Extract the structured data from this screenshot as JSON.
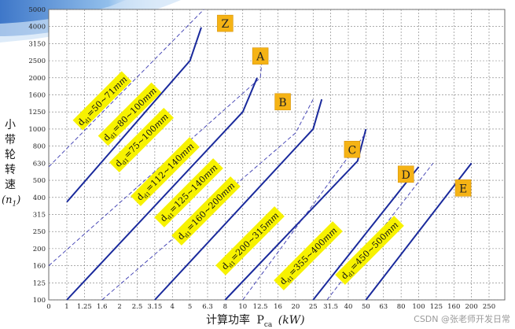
{
  "chart_data": {
    "type": "line",
    "xlabel_cn": "计算功率",
    "xlabel_sym": "P",
    "xlabel_sub": "ca",
    "xlabel_unit": "(kW)",
    "ylabel_chars": [
      "小",
      "带",
      "轮",
      "转",
      "速"
    ],
    "ylabel_sym": "(n",
    "ylabel_sub": "1",
    "ylabel_close": ")",
    "x_ticks": [
      "0",
      "1",
      "1.25",
      "1.6",
      "2",
      "2.5",
      "3.15",
      "4",
      "5",
      "6.3",
      "8",
      "10",
      "12.5",
      "16",
      "20",
      "25",
      "31.5",
      "40",
      "50",
      "63",
      "80",
      "100",
      "125",
      "160",
      "200",
      "250"
    ],
    "y_ticks": [
      "100",
      "125",
      "160",
      "200",
      "250",
      "315",
      "400",
      "500",
      "630",
      "800",
      "1000",
      "1250",
      "1600",
      "2000",
      "2500",
      "3150",
      "4000",
      "5000"
    ],
    "types": [
      {
        "name": "Z",
        "main_line": [
          [
            1,
            375
          ],
          [
            5,
            2500
          ],
          [
            5.8,
            3950
          ]
        ],
        "boundary": [
          [
            0,
            600
          ],
          [
            6,
            5000
          ]
        ]
      },
      {
        "name": "A",
        "main_line": [
          [
            1,
            100
          ],
          [
            10,
            1250
          ],
          [
            12,
            2000
          ]
        ],
        "boundary": [
          [
            0,
            160
          ],
          [
            12.5,
            2000
          ],
          [
            13,
            3000
          ]
        ]
      },
      {
        "name": "B",
        "main_line": [
          [
            3.15,
            100
          ],
          [
            25,
            1000
          ],
          [
            28,
            1500
          ]
        ],
        "boundary": [
          [
            1.6,
            100
          ],
          [
            20,
            950
          ],
          [
            25,
            1500
          ]
        ]
      },
      {
        "name": "C",
        "main_line": [
          [
            8,
            100
          ],
          [
            45,
            650
          ],
          [
            50,
            1000
          ]
        ],
        "boundary": [
          [
            10,
            100
          ],
          [
            50,
            950
          ]
        ]
      },
      {
        "name": "D",
        "main_line": [
          [
            25,
            100
          ],
          [
            100,
            600
          ]
        ],
        "boundary": [
          [
            30,
            100
          ],
          [
            120,
            630
          ]
        ]
      },
      {
        "name": "E",
        "main_line": [
          [
            50,
            100
          ],
          [
            200,
            630
          ]
        ],
        "boundary": []
      }
    ],
    "diameter_labels": [
      {
        "text": "=50~71",
        "unit": "mm"
      },
      {
        "text": "=80~100",
        "unit": "mm"
      },
      {
        "text": "=75~100",
        "unit": "mm"
      },
      {
        "text": "=112~140",
        "unit": "mm"
      },
      {
        "text": "=125~140",
        "unit": "mm"
      },
      {
        "text": "=160~200",
        "unit": "mm"
      },
      {
        "text": "=200~315",
        "unit": "mm"
      },
      {
        "text": "=355~400",
        "unit": "mm"
      },
      {
        "text": "=450~500",
        "unit": "mm"
      }
    ],
    "diameter_symbol": "d",
    "diameter_sub": "d1",
    "colors": {
      "main_line": "#1a2a9c",
      "boundary": "#3a3ab0",
      "label_bg": "#f7f200",
      "type_bg": "#f5b315",
      "grid": "#7a7a7a"
    }
  },
  "watermark": "CSDN @张老师开发日常"
}
